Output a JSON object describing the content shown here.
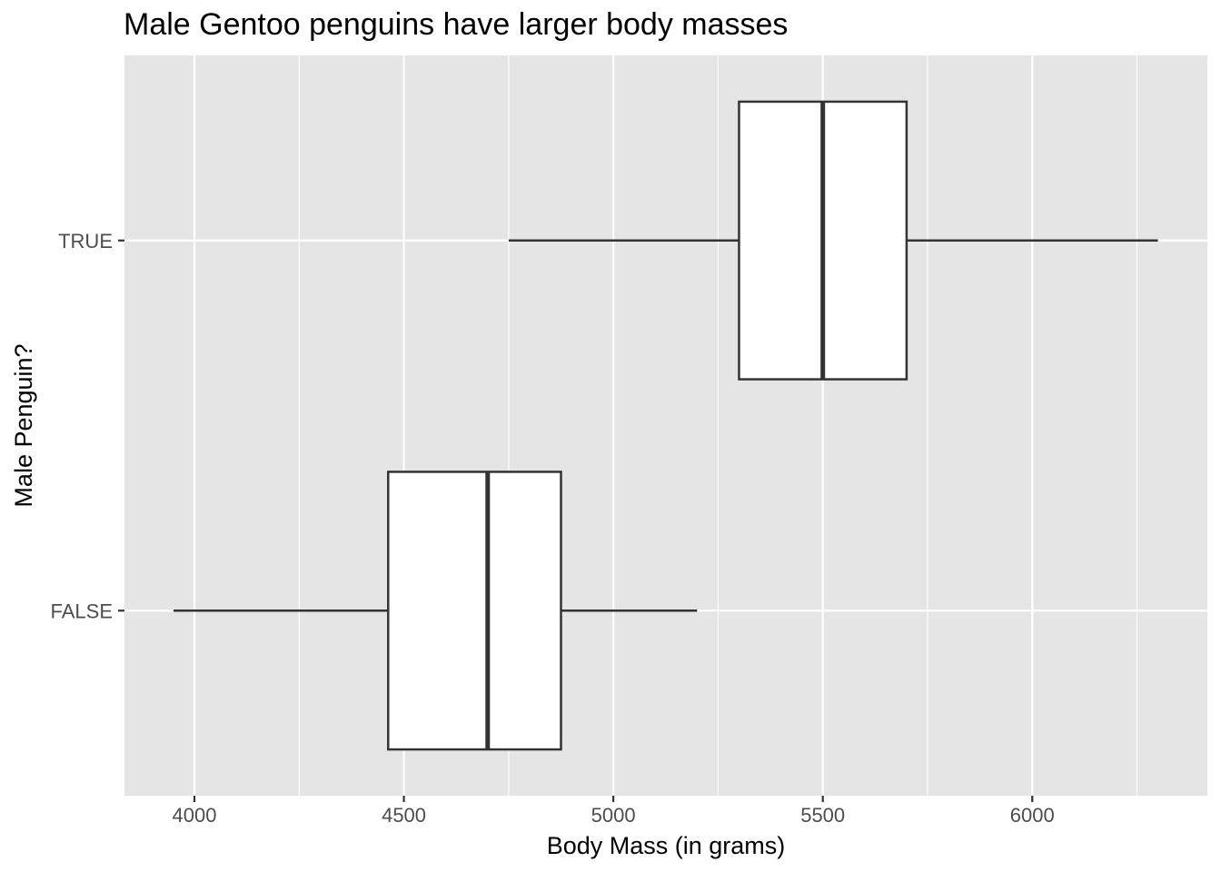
{
  "chart_data": {
    "type": "boxplot",
    "orientation": "horizontal",
    "title": "Male Gentoo penguins have larger body masses",
    "xlabel": "Body Mass (in grams)",
    "ylabel": "Male Penguin?",
    "xlim": [
      3833,
      6418
    ],
    "x_ticks": [
      4000,
      4500,
      5000,
      5500,
      6000
    ],
    "categories": [
      "FALSE",
      "TRUE"
    ],
    "series": [
      {
        "category": "FALSE",
        "min": 3950,
        "q1": 4462.5,
        "median": 4700,
        "q3": 4875,
        "max": 5200
      },
      {
        "category": "TRUE",
        "min": 4750,
        "q1": 5300,
        "median": 5500,
        "q3": 5700,
        "max": 6300
      }
    ],
    "grid": true,
    "legend": "none",
    "colors": {
      "panel": "#e5e5e5",
      "grid": "#ffffff",
      "box_fill": "#ffffff",
      "box_stroke": "#333333"
    }
  }
}
